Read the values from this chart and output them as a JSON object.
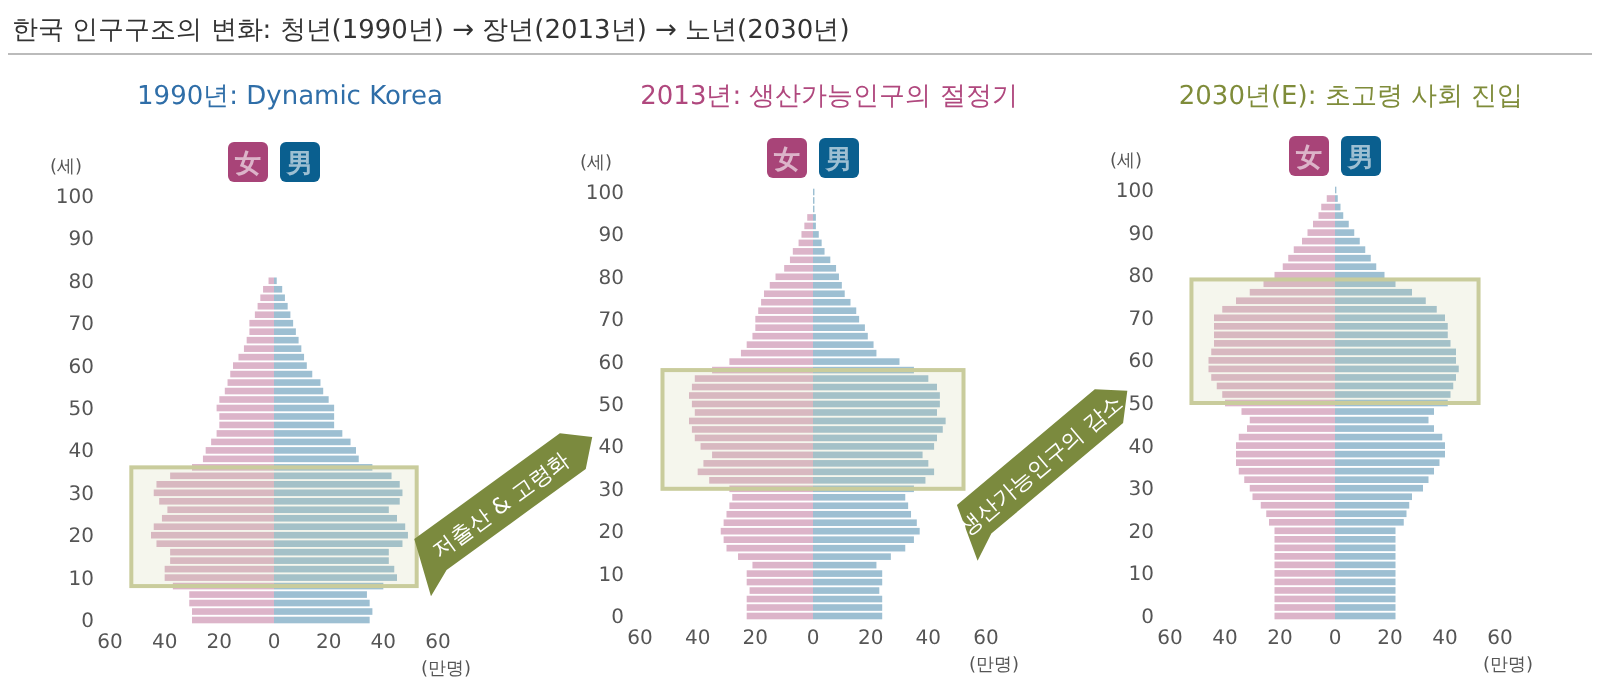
{
  "chart_data": [
    {
      "type": "bar",
      "orientation": "horizontal",
      "stacked": true,
      "title": "1990년: Dynamic Korea",
      "xlabel": "(만명)",
      "ylabel": "(세)",
      "legend": "top",
      "x": [
        0,
        2,
        4,
        6,
        8,
        10,
        12,
        14,
        16,
        18,
        20,
        22,
        24,
        26,
        28,
        30,
        32,
        34,
        36,
        38,
        40,
        42,
        44,
        46,
        48,
        50,
        52,
        54,
        56,
        58,
        60,
        62,
        64,
        66,
        68,
        70,
        72,
        74,
        76,
        78,
        80
      ],
      "series": [
        {
          "name": "女",
          "color": "#dcb4c9",
          "values": [
            -30,
            -30,
            -31,
            -31,
            -37,
            -40,
            -40,
            -38,
            -38,
            -43,
            -45,
            -44,
            -41,
            -39,
            -42,
            -44,
            -43,
            -38,
            -30,
            -26,
            -25,
            -23,
            -21,
            -20,
            -20,
            -21,
            -20,
            -18,
            -17,
            -16,
            -15,
            -13,
            -11,
            -10,
            -9,
            -9,
            -7,
            -6,
            -5,
            -4,
            -2
          ]
        },
        {
          "name": "男",
          "color": "#9dbfd2",
          "values": [
            35,
            36,
            35,
            34,
            40,
            45,
            44,
            42,
            42,
            47,
            49,
            48,
            45,
            42,
            46,
            47,
            46,
            43,
            36,
            31,
            30,
            28,
            25,
            22,
            22,
            22,
            20,
            18,
            17,
            14,
            12,
            11,
            10,
            9,
            8,
            7,
            6,
            5,
            4,
            3,
            1
          ]
        }
      ],
      "xlim": [
        -60,
        60
      ],
      "xticks": [
        {
          "value": -60,
          "label": "60"
        },
        {
          "value": -40,
          "label": "40"
        },
        {
          "value": -20,
          "label": "20"
        },
        0,
        20,
        40,
        60
      ],
      "ylim": [
        0,
        100
      ],
      "yticks": [
        0,
        10,
        20,
        30,
        40,
        50,
        60,
        70,
        80,
        90,
        100
      ],
      "bands": [
        {
          "axis": "y",
          "from": 8,
          "to": 36,
          "color": "#c9cc9c"
        }
      ],
      "annotations": [
        "한국 인구구조의 변화: 청년(1990년) → 장년(2013년) → 노년(2030년)",
        "저출산 & 고령화"
      ]
    },
    {
      "type": "bar",
      "orientation": "horizontal",
      "stacked": true,
      "title": "2013년: 생산가능인구의 절정기",
      "xlabel": "(만명)",
      "ylabel": "(세)",
      "legend": "top",
      "x": [
        0,
        2,
        4,
        6,
        8,
        10,
        12,
        14,
        16,
        18,
        20,
        22,
        24,
        26,
        28,
        30,
        32,
        34,
        36,
        38,
        40,
        42,
        44,
        46,
        48,
        50,
        52,
        54,
        56,
        58,
        60,
        62,
        64,
        66,
        68,
        70,
        72,
        74,
        76,
        78,
        80,
        82,
        84,
        86,
        88,
        90,
        92,
        94,
        96,
        98,
        100
      ],
      "series": [
        {
          "name": "女",
          "color": "#dcb4c9",
          "values": [
            -23,
            -23,
            -23,
            -22,
            -23,
            -23,
            -21,
            -26,
            -30,
            -31,
            -32,
            -31,
            -30,
            -29,
            -28,
            -29,
            -36,
            -40,
            -38,
            -35,
            -39,
            -41,
            -42,
            -43,
            -41,
            -42,
            -43,
            -42,
            -41,
            -35,
            -29,
            -25,
            -23,
            -21,
            -20,
            -20,
            -19,
            -18,
            -17,
            -15,
            -13,
            -10,
            -8,
            -7,
            -5,
            -4,
            -3,
            -2,
            null,
            null,
            null
          ]
        },
        {
          "name": "男",
          "color": "#9dbfd2",
          "values": [
            24,
            24,
            24,
            23,
            24,
            24,
            22,
            27,
            32,
            35,
            37,
            36,
            34,
            33,
            32,
            35,
            39,
            42,
            40,
            38,
            42,
            43,
            45,
            46,
            43,
            44,
            44,
            43,
            40,
            35,
            30,
            22,
            21,
            19,
            18,
            16,
            15,
            13,
            11,
            10,
            9,
            8,
            6,
            4,
            3,
            2,
            1,
            1,
            0.5,
            0.5,
            0.5
          ]
        }
      ],
      "xlim": [
        -60,
        60
      ],
      "xticks": [
        {
          "value": -60,
          "label": "60"
        },
        {
          "value": -40,
          "label": "40"
        },
        {
          "value": -20,
          "label": "20"
        },
        0,
        20,
        40,
        60
      ],
      "ylim": [
        0,
        100
      ],
      "yticks": [
        0,
        10,
        20,
        30,
        40,
        50,
        60,
        70,
        80,
        90,
        100
      ],
      "bands": [
        {
          "axis": "y",
          "from": 30,
          "to": 58,
          "color": "#c9cc9c"
        }
      ],
      "annotations": [
        "생산가능인구의 감소"
      ]
    },
    {
      "type": "bar",
      "orientation": "horizontal",
      "stacked": true,
      "title": "2030년(E): 초고령 사회 진입",
      "xlabel": "(만명)",
      "ylabel": "(세)",
      "legend": "top",
      "x": [
        0,
        2,
        4,
        6,
        8,
        10,
        12,
        14,
        16,
        18,
        20,
        22,
        24,
        26,
        28,
        30,
        32,
        34,
        36,
        38,
        40,
        42,
        44,
        46,
        48,
        50,
        52,
        54,
        56,
        58,
        60,
        62,
        64,
        66,
        68,
        70,
        72,
        74,
        76,
        78,
        80,
        82,
        84,
        86,
        88,
        90,
        92,
        94,
        96,
        98,
        100
      ],
      "series": [
        {
          "name": "女",
          "color": "#dcb4c9",
          "values": [
            -22,
            -22,
            -22,
            -22,
            -22,
            -22,
            -22,
            -22,
            -22,
            -22,
            -22,
            -24,
            -25,
            -27,
            -30,
            -31,
            -33,
            -35,
            -36,
            -36,
            -36,
            -35,
            -32,
            -31,
            -34,
            -40,
            -41,
            -43,
            -45,
            -46,
            -46,
            -45,
            -44,
            -44,
            -44,
            -44,
            -41,
            -36,
            -31,
            -26,
            -22,
            -19,
            -17,
            -15,
            -12,
            -10,
            -8,
            -6,
            -5,
            -3,
            null
          ]
        },
        {
          "name": "男",
          "color": "#9dbfd2",
          "values": [
            22,
            22,
            22,
            22,
            22,
            22,
            22,
            22,
            22,
            22,
            22,
            25,
            26,
            27,
            28,
            32,
            34,
            36,
            38,
            40,
            40,
            39,
            36,
            34,
            36,
            41,
            42,
            43,
            44,
            45,
            44,
            44,
            42,
            41,
            41,
            40,
            37,
            33,
            28,
            22,
            18,
            15,
            13,
            11,
            9,
            7,
            5,
            3,
            2,
            1,
            0.5
          ]
        }
      ],
      "xlim": [
        -60,
        60
      ],
      "xticks": [
        {
          "value": -60,
          "label": "60"
        },
        {
          "value": -40,
          "label": "40"
        },
        {
          "value": -20,
          "label": "20"
        },
        0,
        20,
        40,
        60
      ],
      "ylim": [
        0,
        100
      ],
      "yticks": [
        0,
        10,
        20,
        30,
        40,
        50,
        60,
        70,
        80,
        90,
        100
      ],
      "bands": [
        {
          "axis": "y",
          "from": 50,
          "to": 79,
          "color": "#c9cc9c"
        }
      ]
    }
  ]
}
